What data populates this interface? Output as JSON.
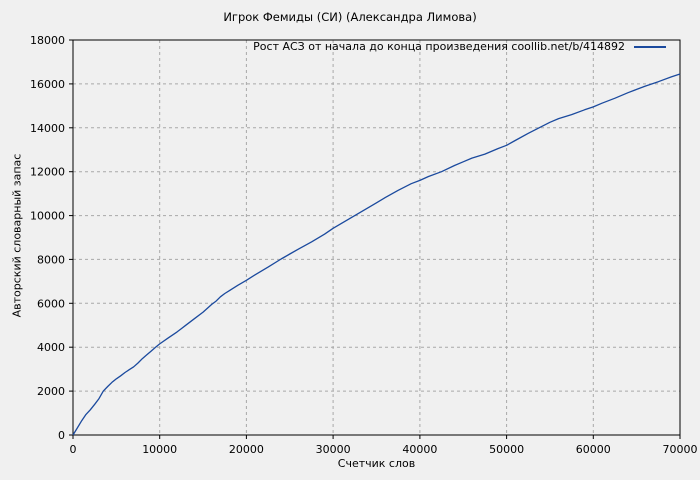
{
  "page": {
    "title": "Игрок Фемиды (СИ) (Александра Лимова)"
  },
  "chart_data": {
    "type": "line",
    "title": "Игрок Фемиды (СИ) (Александра Лимова)",
    "xlabel": "Счетчик слов",
    "ylabel": "Авторский словарный запас",
    "xlim": [
      0,
      70000
    ],
    "ylim": [
      0,
      18000
    ],
    "xticks": [
      0,
      10000,
      20000,
      30000,
      40000,
      50000,
      60000,
      70000
    ],
    "yticks": [
      0,
      2000,
      4000,
      6000,
      8000,
      10000,
      12000,
      14000,
      16000,
      18000
    ],
    "grid": true,
    "legend_position": "top-right-inside",
    "colors": {
      "background": "#f0f0f0",
      "grid": "#a8a8a8",
      "axis": "#000000",
      "series": "#1b4a9e"
    },
    "series": [
      {
        "name": "Рост АСЗ от начала до конца произведения  coollib.net/b/414892",
        "color": "#1b4a9e",
        "points": [
          [
            0,
            0
          ],
          [
            500,
            320
          ],
          [
            1000,
            650
          ],
          [
            1500,
            940
          ],
          [
            2000,
            1150
          ],
          [
            2500,
            1400
          ],
          [
            3000,
            1660
          ],
          [
            3500,
            2000
          ],
          [
            4000,
            2210
          ],
          [
            4500,
            2400
          ],
          [
            5000,
            2560
          ],
          [
            5500,
            2700
          ],
          [
            6000,
            2850
          ],
          [
            6500,
            2980
          ],
          [
            7000,
            3110
          ],
          [
            7500,
            3280
          ],
          [
            8000,
            3480
          ],
          [
            8500,
            3650
          ],
          [
            9000,
            3820
          ],
          [
            9500,
            3990
          ],
          [
            10000,
            4150
          ],
          [
            11000,
            4430
          ],
          [
            12000,
            4700
          ],
          [
            12500,
            4850
          ],
          [
            13000,
            5000
          ],
          [
            14000,
            5300
          ],
          [
            15000,
            5600
          ],
          [
            16000,
            5950
          ],
          [
            16500,
            6100
          ],
          [
            17000,
            6300
          ],
          [
            17500,
            6450
          ],
          [
            18000,
            6570
          ],
          [
            19000,
            6820
          ],
          [
            20000,
            7050
          ],
          [
            21000,
            7300
          ],
          [
            22500,
            7650
          ],
          [
            24000,
            8020
          ],
          [
            25000,
            8250
          ],
          [
            26000,
            8470
          ],
          [
            27500,
            8800
          ],
          [
            29000,
            9150
          ],
          [
            30000,
            9420
          ],
          [
            31000,
            9650
          ],
          [
            32500,
            10000
          ],
          [
            34000,
            10350
          ],
          [
            35000,
            10580
          ],
          [
            36000,
            10820
          ],
          [
            37500,
            11150
          ],
          [
            39000,
            11450
          ],
          [
            40000,
            11600
          ],
          [
            41000,
            11780
          ],
          [
            42500,
            12000
          ],
          [
            44000,
            12280
          ],
          [
            45000,
            12450
          ],
          [
            46000,
            12620
          ],
          [
            47500,
            12800
          ],
          [
            49000,
            13050
          ],
          [
            50000,
            13200
          ],
          [
            51000,
            13420
          ],
          [
            52500,
            13750
          ],
          [
            54000,
            14050
          ],
          [
            55000,
            14250
          ],
          [
            56000,
            14420
          ],
          [
            57500,
            14600
          ],
          [
            59000,
            14820
          ],
          [
            60000,
            14950
          ],
          [
            61000,
            15120
          ],
          [
            62500,
            15350
          ],
          [
            64000,
            15600
          ],
          [
            65000,
            15750
          ],
          [
            66000,
            15900
          ],
          [
            67500,
            16100
          ],
          [
            69000,
            16320
          ],
          [
            70000,
            16450
          ]
        ]
      }
    ]
  }
}
